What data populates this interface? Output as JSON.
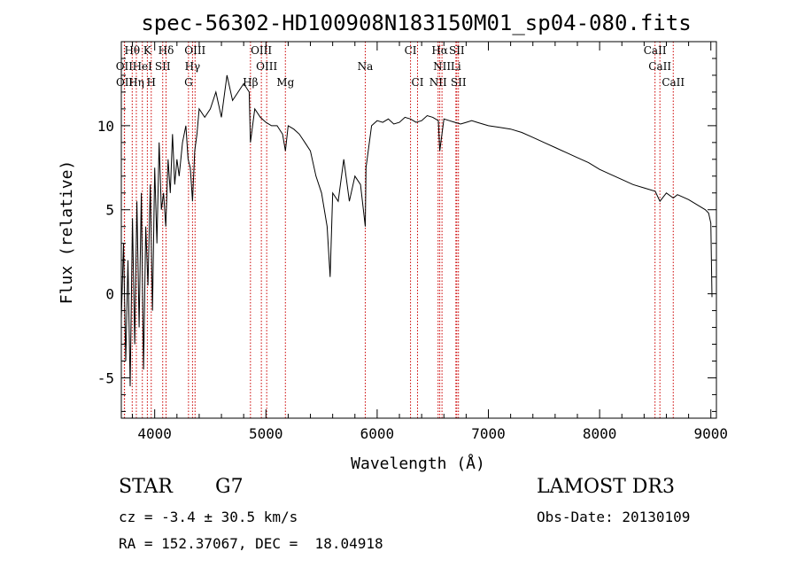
{
  "chart_data": {
    "type": "line",
    "title": "spec-56302-HD100908N183150M01_sp04-080.fits",
    "xlabel": "Wavelength (Å)",
    "ylabel": "Flux (relative)",
    "xlim": [
      3700,
      9050
    ],
    "ylim": [
      -7.4,
      15
    ],
    "x_ticks": [
      4000,
      5000,
      6000,
      7000,
      8000,
      9000
    ],
    "y_ticks": [
      -5,
      0,
      5,
      10
    ],
    "grid": false,
    "series": [
      {
        "name": "flux",
        "x": [
          3700,
          3720,
          3740,
          3760,
          3780,
          3800,
          3820,
          3840,
          3860,
          3880,
          3900,
          3920,
          3940,
          3960,
          3980,
          4000,
          4020,
          4040,
          4060,
          4080,
          4100,
          4120,
          4140,
          4160,
          4180,
          4200,
          4220,
          4250,
          4280,
          4300,
          4320,
          4340,
          4360,
          4380,
          4400,
          4450,
          4500,
          4550,
          4600,
          4650,
          4700,
          4750,
          4800,
          4850,
          4861,
          4900,
          4950,
          5000,
          5050,
          5100,
          5150,
          5175,
          5200,
          5250,
          5300,
          5350,
          5400,
          5450,
          5500,
          5550,
          5577,
          5600,
          5650,
          5700,
          5750,
          5800,
          5850,
          5893,
          5900,
          5950,
          6000,
          6050,
          6100,
          6150,
          6200,
          6250,
          6300,
          6350,
          6400,
          6450,
          6500,
          6550,
          6563,
          6600,
          6650,
          6700,
          6750,
          6800,
          6850,
          6900,
          6950,
          7000,
          7100,
          7200,
          7300,
          7400,
          7500,
          7600,
          7700,
          7800,
          7900,
          8000,
          8100,
          8200,
          8300,
          8400,
          8500,
          8542,
          8600,
          8662,
          8700,
          8800,
          8900,
          8950,
          8980,
          9000,
          9010
        ],
        "y": [
          -1.5,
          3.0,
          -4.0,
          2.0,
          -5.5,
          4.5,
          -3.0,
          5.5,
          -2.0,
          6.0,
          -4.5,
          4.0,
          0.5,
          6.5,
          -1.0,
          7.5,
          3.0,
          9.0,
          5.0,
          6.0,
          4.0,
          8.0,
          6.0,
          9.5,
          6.5,
          8.0,
          7.0,
          9.0,
          10.0,
          8.0,
          7.5,
          5.5,
          8.5,
          9.5,
          11.0,
          10.5,
          11.0,
          12.0,
          10.5,
          13.0,
          11.5,
          12.0,
          12.5,
          12.0,
          9.0,
          11.0,
          10.5,
          10.2,
          10.0,
          10.0,
          9.5,
          8.5,
          10.0,
          9.8,
          9.5,
          9.0,
          8.5,
          7.0,
          6.0,
          4.0,
          1.0,
          6.0,
          5.5,
          8.0,
          5.5,
          7.0,
          6.5,
          4.0,
          7.5,
          10.0,
          10.3,
          10.2,
          10.4,
          10.1,
          10.2,
          10.5,
          10.4,
          10.2,
          10.3,
          10.6,
          10.5,
          10.3,
          8.5,
          10.4,
          10.3,
          10.2,
          10.1,
          10.2,
          10.3,
          10.2,
          10.1,
          10.0,
          9.9,
          9.8,
          9.6,
          9.3,
          9.0,
          8.7,
          8.4,
          8.1,
          7.8,
          7.4,
          7.1,
          6.8,
          6.5,
          6.3,
          6.1,
          5.5,
          6.0,
          5.7,
          5.9,
          5.6,
          5.2,
          5.0,
          4.8,
          4.2,
          -0.2
        ]
      }
    ],
    "lines": [
      {
        "label": "Hθ",
        "x": 3798,
        "row": 1
      },
      {
        "label": "K",
        "x": 3934,
        "row": 1
      },
      {
        "label": "Hδ",
        "x": 4102,
        "row": 1
      },
      {
        "label": "OIII",
        "x": 4363,
        "row": 1
      },
      {
        "label": "OIII",
        "x": 4959,
        "row": 1
      },
      {
        "label": "CI",
        "x": 6300,
        "row": 1
      },
      {
        "label": "Hα",
        "x": 6563,
        "row": 1
      },
      {
        "label": "SII",
        "x": 6716,
        "row": 1
      },
      {
        "label": "CaII",
        "x": 8498,
        "row": 1
      },
      {
        "label": "OII",
        "x": 3727,
        "row": 2
      },
      {
        "label": "HeI",
        "x": 3889,
        "row": 2
      },
      {
        "label": "SII",
        "x": 4072,
        "row": 2
      },
      {
        "label": "Hγ",
        "x": 4340,
        "row": 2
      },
      {
        "label": "OIII",
        "x": 5007,
        "row": 2
      },
      {
        "label": "Na",
        "x": 5893,
        "row": 2
      },
      {
        "label": "NII",
        "x": 6583,
        "row": 2
      },
      {
        "label": "Li",
        "x": 6708,
        "row": 2
      },
      {
        "label": "CaII",
        "x": 8542,
        "row": 2
      },
      {
        "label": "OII",
        "x": 3729,
        "row": 3
      },
      {
        "label": "Hη",
        "x": 3835,
        "row": 3
      },
      {
        "label": "H",
        "x": 3969,
        "row": 3
      },
      {
        "label": "G",
        "x": 4304,
        "row": 3
      },
      {
        "label": "Hβ",
        "x": 4861,
        "row": 3
      },
      {
        "label": "Mg",
        "x": 5175,
        "row": 3
      },
      {
        "label": "CI",
        "x": 6363,
        "row": 3
      },
      {
        "label": "NII",
        "x": 6548,
        "row": 3
      },
      {
        "label": "SII",
        "x": 6731,
        "row": 3
      },
      {
        "label": "CaII",
        "x": 8662,
        "row": 3
      }
    ],
    "line_color": "#cc0000"
  },
  "info": {
    "object_class": "STAR",
    "subclass": "G7",
    "survey": "LAMOST DR3",
    "cz": "cz = -3.4 ± 30.5 km/s",
    "obs_date": "Obs-Date: 20130109",
    "coords": "RA = 152.37067, DEC =  18.04918"
  }
}
